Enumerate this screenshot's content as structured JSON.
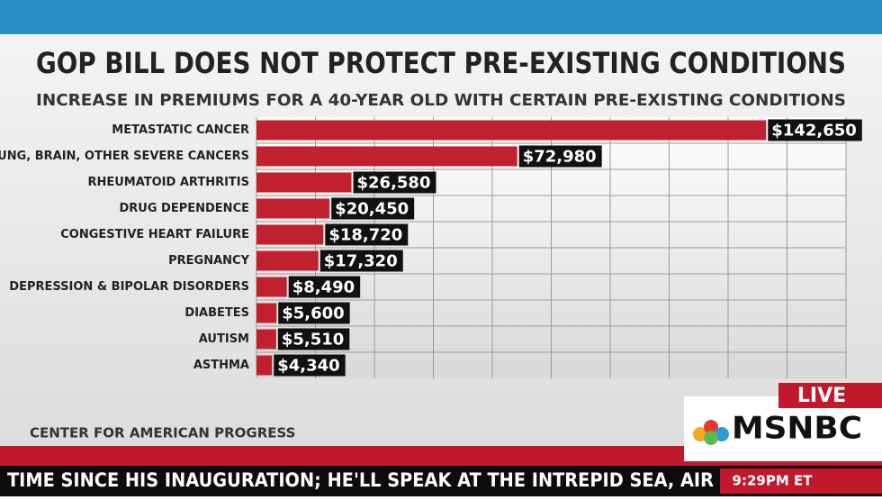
{
  "chart_data": {
    "type": "hbar",
    "title": "GOP BILL DOES NOT PROTECT PRE-EXISTING CONDITIONS",
    "subtitle": "INCREASE IN PREMIUMS FOR A 40-YEAR OLD WITH CERTAIN PRE-EXISTING CONDITIONS",
    "categories": [
      "METASTATIC CANCER",
      "LUNG, BRAIN, OTHER SEVERE CANCERS",
      "RHEUMATOID ARTHRITIS",
      "DRUG DEPENDENCE",
      "CONGESTIVE HEART FAILURE",
      "PREGNANCY",
      "DEPRESSION & BIPOLAR DISORDERS",
      "DIABETES",
      "AUTISM",
      "ASTHMA"
    ],
    "values": [
      142650,
      72980,
      26580,
      20450,
      18720,
      17320,
      8490,
      5600,
      5510,
      4340
    ],
    "value_labels": [
      "$142,650",
      "$72,980",
      "$26,580",
      "$20,450",
      "$18,720",
      "$17,320",
      "$8,490",
      "$5,600",
      "$5,510",
      "$4,340"
    ],
    "color": "#c1202e",
    "xlim": [
      0,
      165000
    ],
    "xticks": [
      0,
      16500,
      33000,
      49500,
      66000,
      82500,
      99000,
      115500,
      132000,
      148500,
      165000
    ],
    "grid": true,
    "source": "CENTER FOR AMERICAN PROGRESS"
  },
  "broadcast": {
    "live": "LIVE",
    "network": "MSNBC",
    "ticker": "TIME SINCE HIS INAUGURATION; HE'LL SPEAK AT THE INTREPID SEA, AIR",
    "time": "9:29PM ET"
  }
}
